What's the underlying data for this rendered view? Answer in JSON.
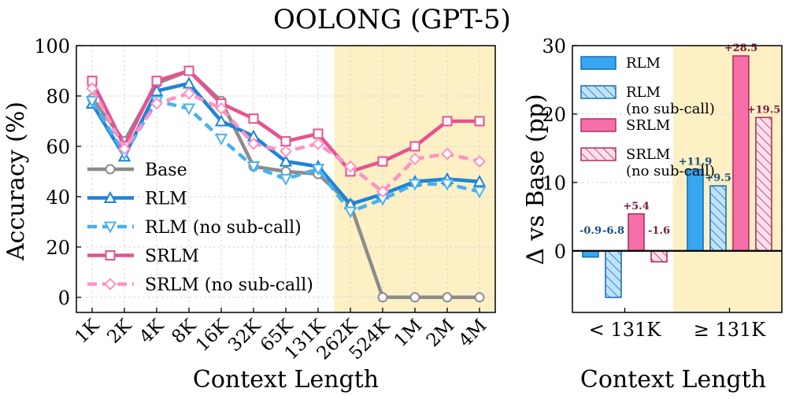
{
  "title": "OOLONG (GPT-5)",
  "chart_data": [
    {
      "type": "line",
      "title": "",
      "xlabel": "Context Length",
      "ylabel": "Accuracy (%)",
      "ylim": [
        -6,
        100
      ],
      "yticks": [
        0,
        20,
        40,
        60,
        80,
        100
      ],
      "categories": [
        "1K",
        "2K",
        "4K",
        "8K",
        "16K",
        "32K",
        "65K",
        "131K",
        "262K",
        "524K",
        "1M",
        "2M",
        "4M"
      ],
      "shaded_region_from_category": "131K",
      "grid": true,
      "legend_position": "lower-left",
      "series": [
        {
          "name": "Base",
          "color": "#8c8c8c",
          "marker": "circle",
          "dashed": false,
          "values": [
            79,
            62,
            85,
            90,
            78,
            52,
            50,
            49,
            37,
            0,
            0,
            0,
            0
          ]
        },
        {
          "name": "RLM",
          "color": "#1f83d6",
          "marker": "triangle-up",
          "dashed": false,
          "values": [
            77,
            56,
            82,
            85,
            70,
            64,
            54,
            52,
            37,
            41,
            46,
            47,
            46
          ]
        },
        {
          "name": "RLM (no sub-call)",
          "color": "#48b1f0",
          "marker": "triangle-down",
          "dashed": true,
          "values": [
            78,
            57,
            78,
            75,
            63,
            52,
            47,
            51,
            34,
            39,
            45,
            45,
            42
          ]
        },
        {
          "name": "SRLM",
          "color": "#e6528f",
          "marker": "square",
          "dashed": false,
          "values": [
            86,
            60,
            86,
            90,
            77,
            71,
            62,
            65,
            50,
            54,
            60,
            70,
            70
          ]
        },
        {
          "name": "SRLM (no sub-call)",
          "color": "#ff92c4",
          "marker": "diamond",
          "dashed": true,
          "values": [
            83,
            59,
            77,
            81,
            75,
            61,
            58,
            61,
            52,
            42,
            55,
            57,
            54
          ]
        }
      ]
    },
    {
      "type": "bar",
      "title": "",
      "xlabel": "Context Length",
      "ylabel": "Δ vs Base (pp)",
      "ylim": [
        -9,
        30
      ],
      "yticks": [
        0,
        10,
        20,
        30
      ],
      "categories": [
        "< 131K",
        "≥ 131K"
      ],
      "shaded_category": "≥ 131K",
      "legend_position": "upper-left",
      "series": [
        {
          "name": "RLM",
          "legend_label": [
            "RLM"
          ],
          "color": "#37a6f0",
          "edge": "#1a6fb8",
          "hatched": false,
          "values": [
            -0.9,
            11.9
          ],
          "labels": [
            "-0.9",
            "+11.9"
          ],
          "label_color": "#1b4d7a"
        },
        {
          "name": "RLM (no sub-call)",
          "legend_label": [
            "RLM",
            "(no sub-call)"
          ],
          "color": "#bfe3fa",
          "edge": "#1a6fb8",
          "hatched": true,
          "values": [
            -6.8,
            9.5
          ],
          "labels": [
            "-6.8",
            "+9.5"
          ],
          "label_color": "#1b4d7a"
        },
        {
          "name": "SRLM",
          "legend_label": [
            "SRLM"
          ],
          "color": "#f66fa8",
          "edge": "#b0305f",
          "hatched": false,
          "values": [
            5.4,
            28.5
          ],
          "labels": [
            "+5.4",
            "+28.5"
          ],
          "label_color": "#7a1a3f"
        },
        {
          "name": "SRLM (no sub-call)",
          "legend_label": [
            "SRLM",
            "(no sub-call)"
          ],
          "color": "#fde0ec",
          "edge": "#b0305f",
          "hatched": true,
          "values": [
            -1.6,
            19.5
          ],
          "labels": [
            "-1.6",
            "+19.5"
          ],
          "label_color": "#7a1a3f"
        }
      ]
    }
  ]
}
